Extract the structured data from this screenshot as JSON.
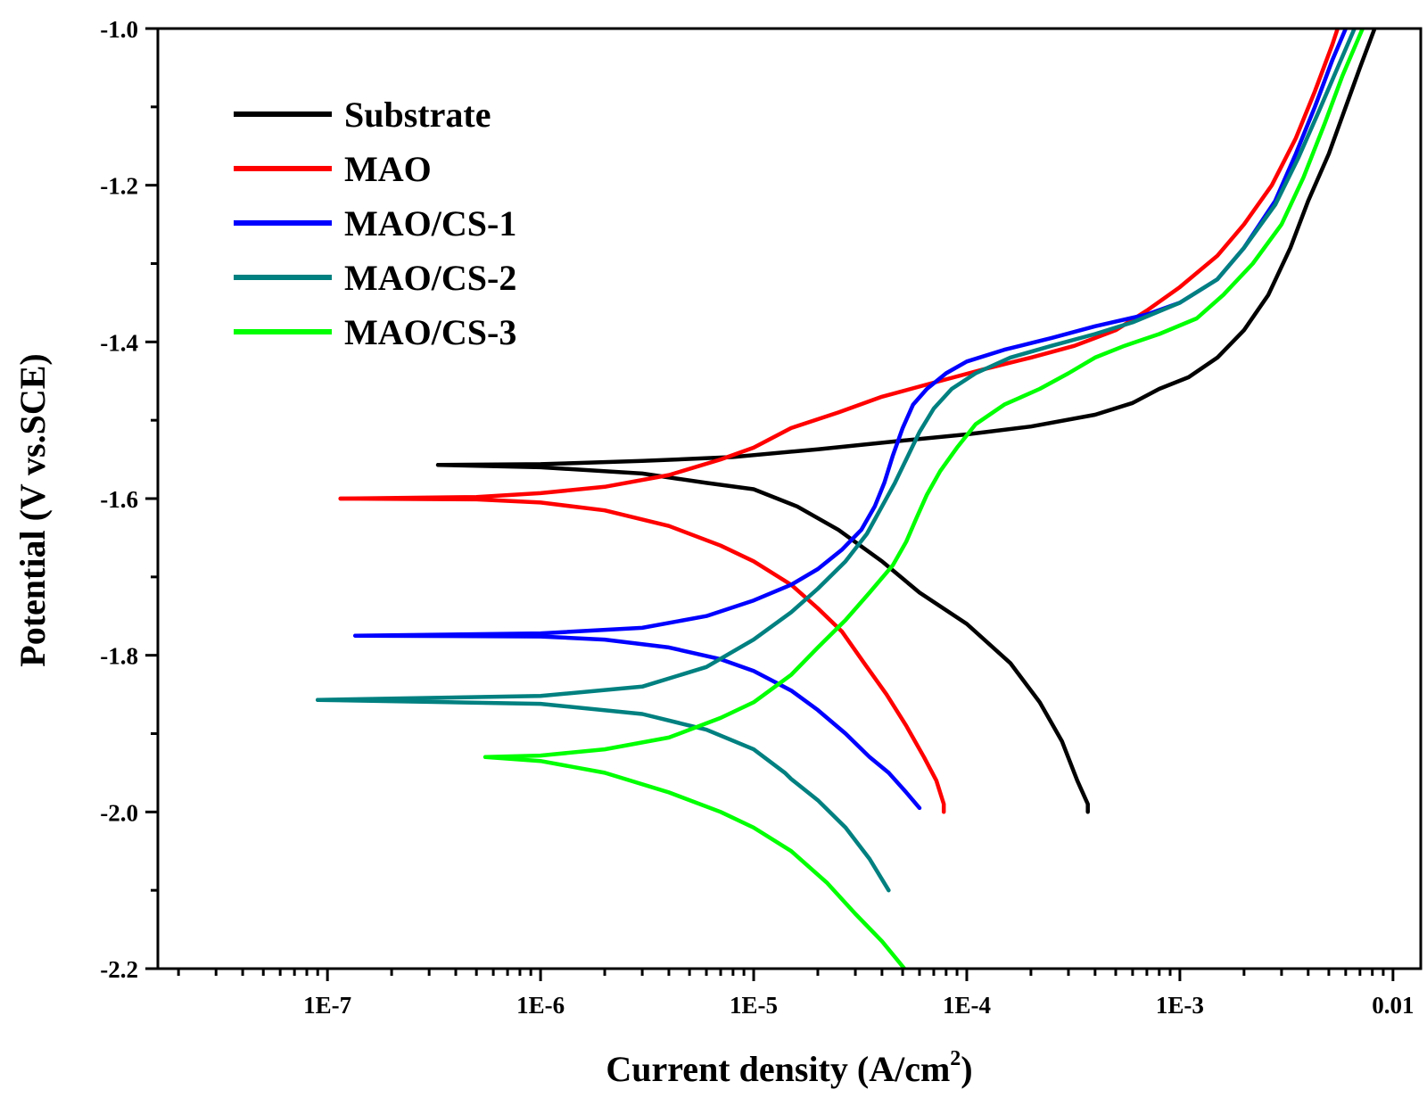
{
  "chart_data": {
    "type": "line",
    "title": "",
    "xlabel": "Current density (A/cm",
    "xlabel_sup": "2",
    "xlabel_suffix": ")",
    "ylabel": "Potential (V vs.SCE)",
    "xscale": "log",
    "xlim": [
      1.6e-08,
      0.0135
    ],
    "ylim": [
      -2.2,
      -1.0
    ],
    "x_ticks": [
      {
        "value": 1e-07,
        "label": "1E-7"
      },
      {
        "value": 1e-06,
        "label": "1E-6"
      },
      {
        "value": 1e-05,
        "label": "1E-5"
      },
      {
        "value": 0.0001,
        "label": "1E-4"
      },
      {
        "value": 0.001,
        "label": "1E-3"
      },
      {
        "value": 0.01,
        "label": "0.01"
      }
    ],
    "y_ticks": [
      {
        "value": -1.0,
        "label": "-1.0"
      },
      {
        "value": -1.2,
        "label": "-1.2"
      },
      {
        "value": -1.4,
        "label": "-1.4"
      },
      {
        "value": -1.6,
        "label": "-1.6"
      },
      {
        "value": -1.8,
        "label": "-1.8"
      },
      {
        "value": -2.0,
        "label": "-2.0"
      },
      {
        "value": -2.2,
        "label": "-2.2"
      }
    ],
    "y_minor_step": 0.1,
    "legend_position": "top-left",
    "series": [
      {
        "name": "Substrate",
        "color": "#000000",
        "cathodic": [
          [
            3.3e-07,
            -1.557
          ],
          [
            1e-06,
            -1.56
          ],
          [
            3e-06,
            -1.568
          ],
          [
            6e-06,
            -1.58
          ],
          [
            1e-05,
            -1.588
          ],
          [
            1.6e-05,
            -1.61
          ],
          [
            2.5e-05,
            -1.64
          ],
          [
            4e-05,
            -1.68
          ],
          [
            6e-05,
            -1.72
          ],
          [
            0.0001,
            -1.76
          ],
          [
            0.00016,
            -1.81
          ],
          [
            0.00022,
            -1.86
          ],
          [
            0.00028,
            -1.91
          ],
          [
            0.00033,
            -1.96
          ],
          [
            0.00037,
            -1.99
          ],
          [
            0.00037,
            -2.0
          ]
        ],
        "anodic": [
          [
            3.3e-07,
            -1.557
          ],
          [
            1e-06,
            -1.556
          ],
          [
            3e-06,
            -1.552
          ],
          [
            8e-06,
            -1.547
          ],
          [
            2e-05,
            -1.537
          ],
          [
            5e-05,
            -1.526
          ],
          [
            0.0001,
            -1.518
          ],
          [
            0.0002,
            -1.508
          ],
          [
            0.0004,
            -1.493
          ],
          [
            0.0006,
            -1.478
          ],
          [
            0.0008,
            -1.46
          ],
          [
            0.0011,
            -1.445
          ],
          [
            0.0015,
            -1.42
          ],
          [
            0.002,
            -1.385
          ],
          [
            0.0026,
            -1.34
          ],
          [
            0.0033,
            -1.28
          ],
          [
            0.004,
            -1.22
          ],
          [
            0.005,
            -1.16
          ],
          [
            0.006,
            -1.1
          ],
          [
            0.007,
            -1.05
          ],
          [
            0.0082,
            -1.0
          ]
        ]
      },
      {
        "name": "MAO",
        "color": "#ff0000",
        "cathodic": [
          [
            1.15e-07,
            -1.6
          ],
          [
            5e-07,
            -1.601
          ],
          [
            1e-06,
            -1.605
          ],
          [
            2e-06,
            -1.615
          ],
          [
            4e-06,
            -1.635
          ],
          [
            7e-06,
            -1.66
          ],
          [
            1e-05,
            -1.68
          ],
          [
            1.5e-05,
            -1.71
          ],
          [
            2e-05,
            -1.74
          ],
          [
            2.6e-05,
            -1.77
          ],
          [
            3.3e-05,
            -1.81
          ],
          [
            4.2e-05,
            -1.85
          ],
          [
            5.2e-05,
            -1.89
          ],
          [
            6.3e-05,
            -1.93
          ],
          [
            7.2e-05,
            -1.96
          ],
          [
            7.8e-05,
            -1.99
          ],
          [
            7.8e-05,
            -2.0
          ]
        ],
        "anodic": [
          [
            1.15e-07,
            -1.6
          ],
          [
            5e-07,
            -1.598
          ],
          [
            1e-06,
            -1.593
          ],
          [
            2e-06,
            -1.585
          ],
          [
            4e-06,
            -1.57
          ],
          [
            7e-06,
            -1.55
          ],
          [
            1e-05,
            -1.535
          ],
          [
            1.5e-05,
            -1.51
          ],
          [
            2.5e-05,
            -1.49
          ],
          [
            4e-05,
            -1.47
          ],
          [
            7e-05,
            -1.452
          ],
          [
            0.00012,
            -1.435
          ],
          [
            0.0002,
            -1.42
          ],
          [
            0.00032,
            -1.405
          ],
          [
            0.0005,
            -1.385
          ],
          [
            0.0007,
            -1.36
          ],
          [
            0.001,
            -1.33
          ],
          [
            0.0015,
            -1.29
          ],
          [
            0.002,
            -1.25
          ],
          [
            0.0027,
            -1.2
          ],
          [
            0.0035,
            -1.14
          ],
          [
            0.0043,
            -1.08
          ],
          [
            0.0052,
            -1.02
          ],
          [
            0.0055,
            -1.0
          ]
        ]
      },
      {
        "name": "MAO/CS-1",
        "color": "#0000ff",
        "cathodic": [
          [
            1.35e-07,
            -1.775
          ],
          [
            1e-06,
            -1.776
          ],
          [
            2e-06,
            -1.78
          ],
          [
            4e-06,
            -1.79
          ],
          [
            7e-06,
            -1.805
          ],
          [
            1e-05,
            -1.82
          ],
          [
            1.5e-05,
            -1.845
          ],
          [
            2e-05,
            -1.87
          ],
          [
            2.7e-05,
            -1.9
          ],
          [
            3.5e-05,
            -1.93
          ],
          [
            4.3e-05,
            -1.95
          ],
          [
            5.2e-05,
            -1.975
          ],
          [
            6e-05,
            -1.995
          ]
        ],
        "anodic": [
          [
            1.35e-07,
            -1.775
          ],
          [
            1e-06,
            -1.772
          ],
          [
            3e-06,
            -1.765
          ],
          [
            6e-06,
            -1.75
          ],
          [
            1e-05,
            -1.73
          ],
          [
            1.5e-05,
            -1.71
          ],
          [
            2e-05,
            -1.69
          ],
          [
            2.6e-05,
            -1.665
          ],
          [
            3.2e-05,
            -1.64
          ],
          [
            3.7e-05,
            -1.61
          ],
          [
            4.1e-05,
            -1.58
          ],
          [
            4.5e-05,
            -1.545
          ],
          [
            5e-05,
            -1.51
          ],
          [
            5.6e-05,
            -1.48
          ],
          [
            6.5e-05,
            -1.46
          ],
          [
            8e-05,
            -1.44
          ],
          [
            0.0001,
            -1.425
          ],
          [
            0.00015,
            -1.41
          ],
          [
            0.00025,
            -1.395
          ],
          [
            0.0004,
            -1.38
          ],
          [
            0.0007,
            -1.365
          ],
          [
            0.001,
            -1.35
          ],
          [
            0.0015,
            -1.32
          ],
          [
            0.002,
            -1.28
          ],
          [
            0.0028,
            -1.22
          ],
          [
            0.0035,
            -1.16
          ],
          [
            0.0043,
            -1.1
          ],
          [
            0.0052,
            -1.04
          ],
          [
            0.006,
            -1.0
          ]
        ]
      },
      {
        "name": "MAO/CS-2",
        "color": "#008080",
        "cathodic": [
          [
            9e-08,
            -1.857
          ],
          [
            1e-06,
            -1.862
          ],
          [
            3e-06,
            -1.875
          ],
          [
            6e-06,
            -1.895
          ],
          [
            1e-05,
            -1.92
          ],
          [
            1.4e-05,
            -1.95
          ],
          [
            1.5e-05,
            -1.958
          ],
          [
            2e-05,
            -1.985
          ],
          [
            2.7e-05,
            -2.02
          ],
          [
            3.5e-05,
            -2.06
          ],
          [
            4.3e-05,
            -2.1
          ]
        ],
        "anodic": [
          [
            9e-08,
            -1.857
          ],
          [
            1e-06,
            -1.852
          ],
          [
            3e-06,
            -1.84
          ],
          [
            6e-06,
            -1.815
          ],
          [
            1e-05,
            -1.78
          ],
          [
            1.5e-05,
            -1.745
          ],
          [
            2e-05,
            -1.715
          ],
          [
            2.7e-05,
            -1.68
          ],
          [
            3.4e-05,
            -1.645
          ],
          [
            4e-05,
            -1.61
          ],
          [
            4.6e-05,
            -1.58
          ],
          [
            5.2e-05,
            -1.55
          ],
          [
            6e-05,
            -1.515
          ],
          [
            7e-05,
            -1.485
          ],
          [
            8.5e-05,
            -1.46
          ],
          [
            0.00011,
            -1.44
          ],
          [
            0.00016,
            -1.42
          ],
          [
            0.00025,
            -1.405
          ],
          [
            0.0004,
            -1.39
          ],
          [
            0.0006,
            -1.375
          ],
          [
            0.001,
            -1.35
          ],
          [
            0.0015,
            -1.32
          ],
          [
            0.002,
            -1.28
          ],
          [
            0.0028,
            -1.225
          ],
          [
            0.0036,
            -1.165
          ],
          [
            0.0045,
            -1.105
          ],
          [
            0.0055,
            -1.05
          ],
          [
            0.0066,
            -1.0
          ]
        ]
      },
      {
        "name": "MAO/CS-3",
        "color": "#00ff00",
        "cathodic": [
          [
            5.5e-07,
            -1.93
          ],
          [
            1e-06,
            -1.935
          ],
          [
            2e-06,
            -1.95
          ],
          [
            4e-06,
            -1.975
          ],
          [
            7e-06,
            -2.0
          ],
          [
            1e-05,
            -2.02
          ],
          [
            1.5e-05,
            -2.05
          ],
          [
            2.2e-05,
            -2.09
          ],
          [
            3e-05,
            -2.13
          ],
          [
            4e-05,
            -2.165
          ],
          [
            5.1e-05,
            -2.2
          ]
        ],
        "anodic": [
          [
            5.5e-07,
            -1.93
          ],
          [
            1e-06,
            -1.928
          ],
          [
            2e-06,
            -1.92
          ],
          [
            4e-06,
            -1.905
          ],
          [
            7e-06,
            -1.88
          ],
          [
            1e-05,
            -1.86
          ],
          [
            1.5e-05,
            -1.825
          ],
          [
            2e-05,
            -1.79
          ],
          [
            2.7e-05,
            -1.755
          ],
          [
            3.5e-05,
            -1.72
          ],
          [
            4.5e-05,
            -1.685
          ],
          [
            5.2e-05,
            -1.655
          ],
          [
            5.8e-05,
            -1.625
          ],
          [
            6.5e-05,
            -1.595
          ],
          [
            7.5e-05,
            -1.565
          ],
          [
            9e-05,
            -1.535
          ],
          [
            0.00011,
            -1.505
          ],
          [
            0.00015,
            -1.48
          ],
          [
            0.00022,
            -1.46
          ],
          [
            0.0003,
            -1.44
          ],
          [
            0.0004,
            -1.42
          ],
          [
            0.00055,
            -1.405
          ],
          [
            0.0008,
            -1.39
          ],
          [
            0.0012,
            -1.37
          ],
          [
            0.0016,
            -1.34
          ],
          [
            0.0022,
            -1.3
          ],
          [
            0.003,
            -1.25
          ],
          [
            0.0038,
            -1.19
          ],
          [
            0.0048,
            -1.12
          ],
          [
            0.0058,
            -1.06
          ],
          [
            0.0072,
            -1.0
          ]
        ]
      }
    ]
  }
}
